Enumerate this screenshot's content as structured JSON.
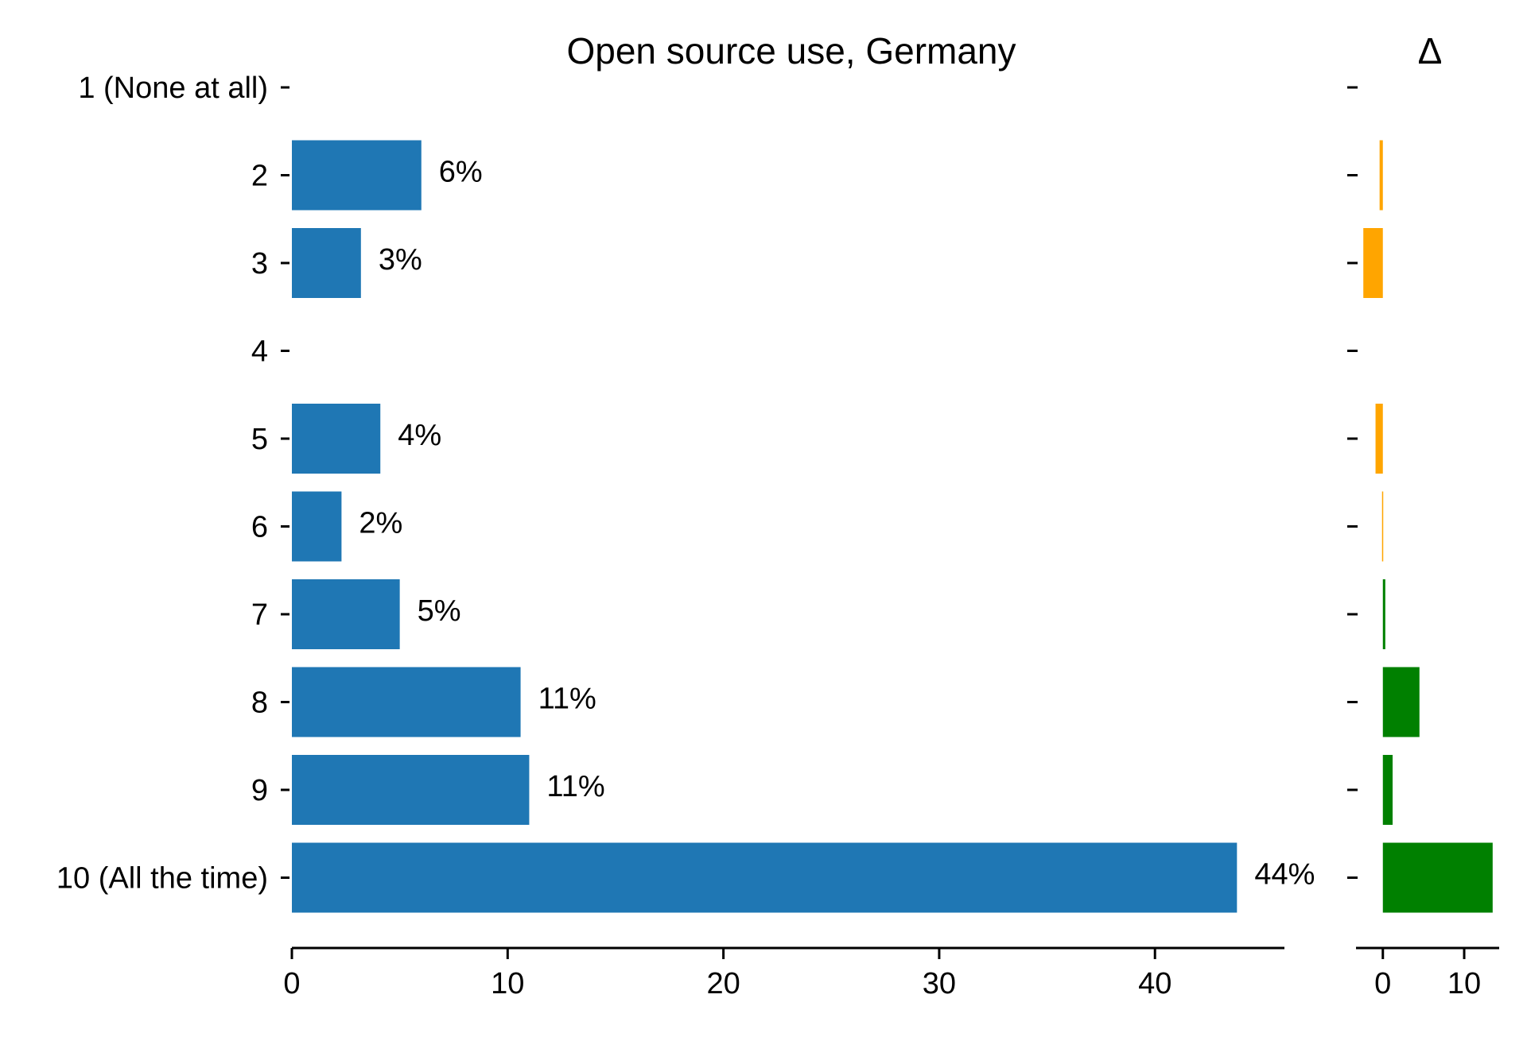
{
  "chart_data": [
    {
      "type": "bar",
      "orientation": "horizontal",
      "title": "Open source use, Germany",
      "xlabel": "",
      "ylabel": "",
      "categories": [
        "1 (None at all)",
        "2",
        "3",
        "4",
        "5",
        "6",
        "7",
        "8",
        "9",
        "10 (All the time)"
      ],
      "values": [
        0,
        6,
        3.2,
        0,
        4.1,
        2.3,
        5,
        10.6,
        11,
        43.8
      ],
      "value_labels": [
        "",
        "6%",
        "3%",
        "",
        "4%",
        "2%",
        "5%",
        "11%",
        "11%",
        "44%"
      ],
      "xlim": [
        0,
        46
      ],
      "xticks": [
        0,
        10,
        20,
        30,
        40
      ],
      "xtick_labels": [
        "0",
        "10",
        "20",
        "30",
        "40"
      ],
      "bar_color": "#1f77b4",
      "grid": false,
      "legend": "none"
    },
    {
      "type": "bar",
      "orientation": "horizontal",
      "title": "Δ",
      "xlabel": "",
      "ylabel": "",
      "categories": [
        "1 (None at all)",
        "2",
        "3",
        "4",
        "5",
        "6",
        "7",
        "8",
        "9",
        "10 (All the time)"
      ],
      "values": [
        0,
        -0.4,
        -2.4,
        0,
        -0.9,
        -0.1,
        0.3,
        4.5,
        1.2,
        13.5
      ],
      "xlim": [
        -3.3,
        14.3
      ],
      "xticks": [
        0,
        10
      ],
      "xtick_labels": [
        "0",
        "10"
      ],
      "negative_color": "#ffa500",
      "positive_color": "#008000",
      "grid": false,
      "legend": "none"
    }
  ]
}
